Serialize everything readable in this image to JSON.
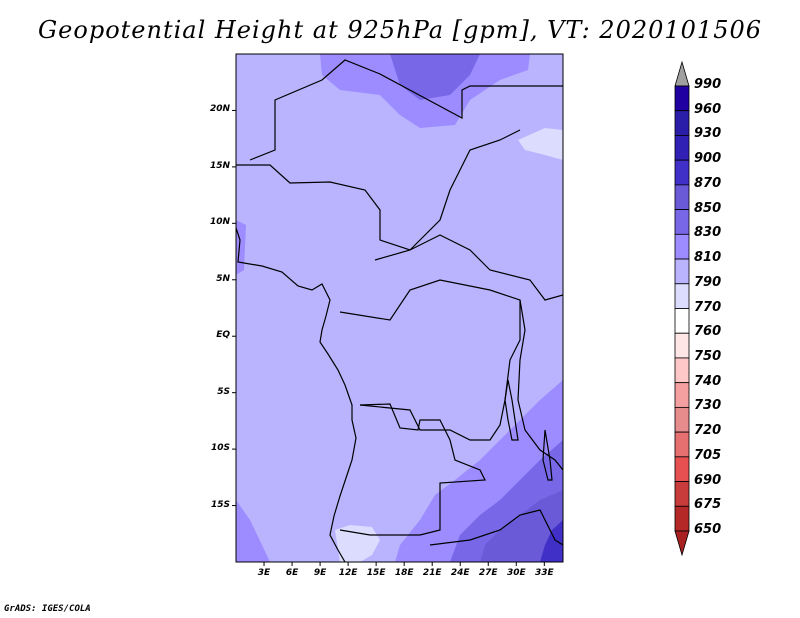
{
  "title": "Geopotential Height at 925hPa [gpm], VT: 2020101506",
  "credit": "GrADS: IGES/COLA",
  "map": {
    "lon_range": [
      0,
      35
    ],
    "lat_range": [
      -20,
      25
    ],
    "y_ticks": [
      "20N",
      "15N",
      "10N",
      "5N",
      "EQ",
      "5S",
      "10S",
      "15S"
    ],
    "y_tick_values": [
      20,
      15,
      10,
      5,
      0,
      -5,
      -10,
      -15
    ],
    "x_ticks": [
      "3E",
      "6E",
      "9E",
      "12E",
      "15E",
      "18E",
      "21E",
      "24E",
      "27E",
      "30E",
      "33E"
    ],
    "x_tick_values": [
      3,
      6,
      9,
      12,
      15,
      18,
      21,
      24,
      27,
      30,
      33
    ]
  },
  "colorbar": {
    "labels": [
      "990",
      "960",
      "930",
      "900",
      "870",
      "850",
      "830",
      "810",
      "790",
      "770",
      "760",
      "750",
      "740",
      "730",
      "720",
      "705",
      "690",
      "675",
      "650"
    ],
    "colors": [
      "#2000a0",
      "#2a1ea8",
      "#3020b4",
      "#4030c8",
      "#6a5ad8",
      "#7868e8",
      "#9c8cff",
      "#bab4ff",
      "#dcdcff",
      "#ffffff",
      "#ffe6e6",
      "#ffc8c8",
      "#f5a0a0",
      "#e68c8c",
      "#e67070",
      "#e65050",
      "#c83c3c",
      "#b42828"
    ],
    "top_arrow_color": "#a0a0a0",
    "bottom_arrow_color": "#a82020"
  }
}
